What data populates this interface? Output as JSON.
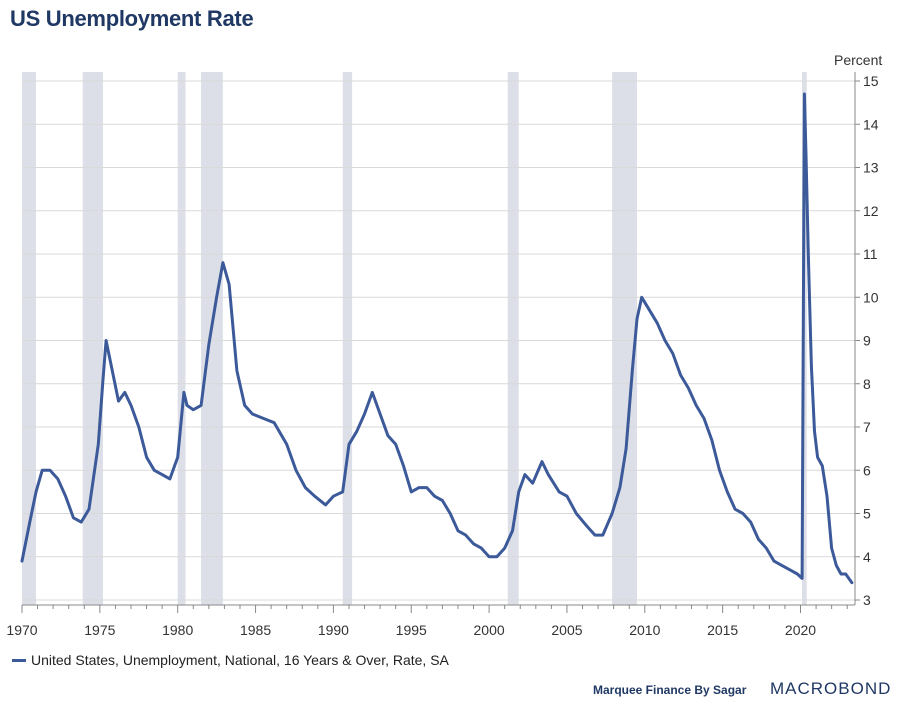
{
  "chart_data": {
    "type": "line",
    "title": "US Unemployment Rate",
    "ylabel": "Percent",
    "xlim": [
      1970,
      2023.5
    ],
    "ylim": [
      3,
      15
    ],
    "x_ticks": [
      1970,
      1975,
      1980,
      1985,
      1990,
      1995,
      2000,
      2005,
      2010,
      2015,
      2020
    ],
    "y_ticks": [
      3,
      4,
      5,
      6,
      7,
      8,
      9,
      10,
      11,
      12,
      13,
      14,
      15
    ],
    "recessions": [
      [
        1970.0,
        1970.9
      ],
      [
        1973.9,
        1975.2
      ],
      [
        1980.0,
        1980.5
      ],
      [
        1981.5,
        1982.9
      ],
      [
        1990.6,
        1991.2
      ],
      [
        2001.2,
        2001.9
      ],
      [
        2007.9,
        2009.5
      ],
      [
        2020.1,
        2020.4
      ]
    ],
    "series": [
      {
        "name": "United States, Unemployment, National, 16 Years & Over, Rate, SA",
        "color": "#3c5a9a",
        "x": [
          1970.0,
          1970.5,
          1970.9,
          1971.3,
          1971.8,
          1972.3,
          1972.8,
          1973.3,
          1973.8,
          1974.3,
          1974.9,
          1975.2,
          1975.4,
          1975.8,
          1976.2,
          1976.6,
          1977.0,
          1977.5,
          1978.0,
          1978.5,
          1979.0,
          1979.5,
          1980.0,
          1980.4,
          1980.6,
          1981.0,
          1981.5,
          1982.0,
          1982.5,
          1982.9,
          1983.3,
          1983.8,
          1984.3,
          1984.8,
          1985.5,
          1986.2,
          1987.0,
          1987.6,
          1988.2,
          1988.8,
          1989.5,
          1990.0,
          1990.6,
          1991.0,
          1991.5,
          1992.0,
          1992.5,
          1993.0,
          1993.5,
          1994.0,
          1994.5,
          1995.0,
          1995.5,
          1996.0,
          1996.5,
          1997.0,
          1997.5,
          1998.0,
          1998.5,
          1999.0,
          1999.5,
          2000.0,
          2000.5,
          2001.0,
          2001.5,
          2001.9,
          2002.3,
          2002.8,
          2003.4,
          2003.8,
          2004.5,
          2005.0,
          2005.6,
          2006.3,
          2006.8,
          2007.3,
          2007.9,
          2008.4,
          2008.8,
          2009.2,
          2009.5,
          2009.8,
          2010.3,
          2010.8,
          2011.3,
          2011.8,
          2012.3,
          2012.8,
          2013.3,
          2013.8,
          2014.3,
          2014.8,
          2015.3,
          2015.8,
          2016.3,
          2016.8,
          2017.3,
          2017.8,
          2018.3,
          2018.8,
          2019.3,
          2019.8,
          2020.1,
          2020.25,
          2020.35,
          2020.5,
          2020.7,
          2020.9,
          2021.1,
          2021.4,
          2021.7,
          2022.0,
          2022.3,
          2022.6,
          2022.9,
          2023.3
        ],
        "y": [
          3.9,
          4.8,
          5.5,
          6.0,
          6.0,
          5.8,
          5.4,
          4.9,
          4.8,
          5.1,
          6.6,
          8.1,
          9.0,
          8.3,
          7.6,
          7.8,
          7.5,
          7.0,
          6.3,
          6.0,
          5.9,
          5.8,
          6.3,
          7.8,
          7.5,
          7.4,
          7.5,
          8.9,
          10.0,
          10.8,
          10.3,
          8.3,
          7.5,
          7.3,
          7.2,
          7.1,
          6.6,
          6.0,
          5.6,
          5.4,
          5.2,
          5.4,
          5.5,
          6.6,
          6.9,
          7.3,
          7.8,
          7.3,
          6.8,
          6.6,
          6.1,
          5.5,
          5.6,
          5.6,
          5.4,
          5.3,
          5.0,
          4.6,
          4.5,
          4.3,
          4.2,
          4.0,
          4.0,
          4.2,
          4.6,
          5.5,
          5.9,
          5.7,
          6.2,
          5.9,
          5.5,
          5.4,
          5.0,
          4.7,
          4.5,
          4.5,
          5.0,
          5.6,
          6.5,
          8.3,
          9.5,
          10.0,
          9.7,
          9.4,
          9.0,
          8.7,
          8.2,
          7.9,
          7.5,
          7.2,
          6.7,
          6.0,
          5.5,
          5.1,
          5.0,
          4.8,
          4.4,
          4.2,
          3.9,
          3.8,
          3.7,
          3.6,
          3.5,
          14.7,
          13.3,
          11.0,
          8.4,
          6.9,
          6.3,
          6.1,
          5.4,
          4.2,
          3.8,
          3.6,
          3.6,
          3.4
        ]
      }
    ],
    "legend_label": "United States, Unemployment, National, 16 Years & Over, Rate, SA"
  },
  "footer": {
    "credit": "Marquee Finance By Sagar",
    "brand": "MACROBOND"
  }
}
